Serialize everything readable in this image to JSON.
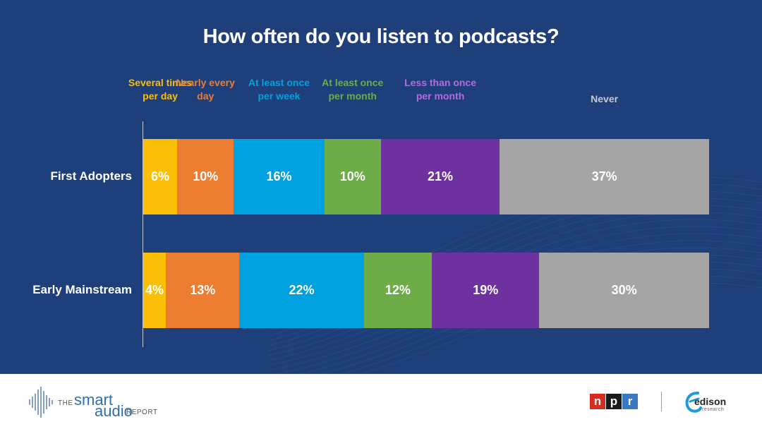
{
  "chart_data": {
    "type": "bar",
    "stacked": true,
    "orientation": "horizontal",
    "title": "How often do you listen to podcasts?",
    "categories": [
      "First Adopters",
      "Early Mainstream"
    ],
    "series": [
      {
        "name": "Several times per day",
        "values": [
          6,
          4
        ],
        "color": "#fbbf09"
      },
      {
        "name": "Nearly every day",
        "values": [
          10,
          13
        ],
        "color": "#ec7d31"
      },
      {
        "name": "At least once per week",
        "values": [
          16,
          22
        ],
        "color": "#01a0df"
      },
      {
        "name": "At least once per month",
        "values": [
          10,
          12
        ],
        "color": "#6dac46"
      },
      {
        "name": "Less than once per month",
        "values": [
          21,
          19
        ],
        "color": "#7031a0"
      },
      {
        "name": "Never",
        "values": [
          37,
          30
        ],
        "color": "#a5a5a5"
      }
    ],
    "legend_text_colors": [
      "#fbbf09",
      "#ec7d31",
      "#01a0df",
      "#6dac46",
      "#b36be0",
      "#c4c9d3"
    ],
    "value_suffix": "%",
    "xlim": [
      0,
      100
    ],
    "legend_position": "top"
  },
  "footer": {
    "brand": {
      "the": "THE",
      "smart": "smart",
      "audio": "audio",
      "report": "REPORT"
    },
    "npr_letters": [
      "n",
      "p",
      "r"
    ],
    "npr_colors": [
      "#d72b1f",
      "#1a1a1a",
      "#3a78c3"
    ],
    "edison": {
      "word": "edison",
      "sub": "research"
    }
  },
  "colors": {
    "background": "#1f3f7a",
    "brand_blue": "#2f6fb0"
  }
}
